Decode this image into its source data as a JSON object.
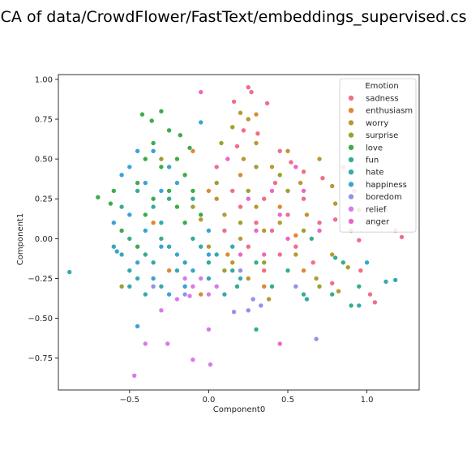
{
  "chart_data": {
    "type": "scatter",
    "title": "PCA of data/CrowdFlower/FastText/embeddings_supervised.csv",
    "xlabel": "Component0",
    "ylabel": "Component1",
    "xlim": [
      -0.95,
      1.33
    ],
    "ylim": [
      -0.95,
      1.03
    ],
    "xticks": [
      -0.5,
      0.0,
      0.5,
      1.0
    ],
    "xtick_labels": [
      "−0.5",
      "0.0",
      "0.5",
      "1.0"
    ],
    "yticks": [
      -0.75,
      -0.5,
      -0.25,
      0.0,
      0.25,
      0.5,
      0.75,
      1.0
    ],
    "ytick_labels": [
      "−0.75",
      "−0.50",
      "−0.25",
      "0.00",
      "0.25",
      "0.50",
      "0.75",
      "1.00"
    ],
    "grid": false,
    "legend": {
      "title": "Emotion",
      "placement": "top-right"
    },
    "series": [
      {
        "name": "sadness",
        "color": "#f06e8a",
        "points": [
          [
            0.25,
            0.95
          ],
          [
            0.27,
            0.92
          ],
          [
            0.37,
            0.85
          ],
          [
            0.16,
            0.86
          ],
          [
            0.22,
            0.68
          ],
          [
            0.31,
            0.66
          ],
          [
            0.45,
            0.55
          ],
          [
            0.52,
            0.48
          ],
          [
            0.6,
            0.42
          ],
          [
            0.72,
            0.38
          ],
          [
            0.85,
            0.45
          ],
          [
            0.92,
            0.3
          ],
          [
            1.03,
            0.34
          ],
          [
            1.12,
            0.18
          ],
          [
            1.18,
            0.05
          ],
          [
            1.22,
            0.01
          ],
          [
            0.8,
            0.12
          ],
          [
            0.95,
            -0.01
          ],
          [
            1.05,
            -0.4
          ],
          [
            1.02,
            -0.35
          ],
          [
            0.96,
            -0.2
          ],
          [
            0.2,
            0.2
          ],
          [
            0.3,
            0.1
          ],
          [
            0.35,
            0.25
          ],
          [
            0.4,
            0.05
          ],
          [
            0.25,
            -0.05
          ],
          [
            0.15,
            0.3
          ],
          [
            0.45,
            -0.1
          ],
          [
            0.5,
            0.15
          ],
          [
            0.55,
            -0.05
          ],
          [
            0.1,
            0.05
          ],
          [
            0.6,
            0.25
          ],
          [
            0.7,
            0.1
          ],
          [
            0.35,
            -0.2
          ],
          [
            0.05,
            0.45
          ],
          [
            0.18,
            0.58
          ],
          [
            0.42,
            0.35
          ],
          [
            0.66,
            -0.15
          ],
          [
            0.78,
            -0.28
          ]
        ]
      },
      {
        "name": "enthusiasm",
        "color": "#db8a37",
        "points": [
          [
            0.3,
            0.78
          ],
          [
            -0.1,
            0.55
          ],
          [
            0.0,
            0.3
          ],
          [
            0.12,
            -0.1
          ],
          [
            -0.25,
            -0.2
          ],
          [
            0.35,
            -0.3
          ],
          [
            0.55,
            0.02
          ],
          [
            -0.05,
            -0.35
          ],
          [
            0.2,
            0.4
          ],
          [
            0.45,
            0.2
          ],
          [
            -0.35,
            0.1
          ],
          [
            0.6,
            -0.2
          ]
        ]
      },
      {
        "name": "worry",
        "color": "#b69a31",
        "points": [
          [
            0.2,
            0.79
          ],
          [
            0.25,
            0.75
          ],
          [
            0.3,
            0.6
          ],
          [
            0.22,
            0.5
          ],
          [
            0.4,
            0.45
          ],
          [
            0.5,
            0.55
          ],
          [
            0.58,
            0.35
          ],
          [
            0.7,
            0.5
          ],
          [
            0.78,
            0.33
          ],
          [
            0.8,
            0.22
          ],
          [
            0.9,
            0.05
          ],
          [
            0.95,
            0.18
          ],
          [
            0.82,
            -0.33
          ],
          [
            0.78,
            -0.1
          ],
          [
            0.88,
            -0.18
          ],
          [
            0.1,
            0.15
          ],
          [
            0.2,
            0.0
          ],
          [
            0.3,
            0.2
          ],
          [
            0.15,
            -0.15
          ],
          [
            0.35,
            0.05
          ],
          [
            0.05,
            0.25
          ],
          [
            0.25,
            -0.25
          ],
          [
            0.45,
            0.1
          ],
          [
            0.55,
            -0.1
          ],
          [
            0.62,
            0.15
          ],
          [
            0.0,
            -0.05
          ],
          [
            -0.05,
            0.12
          ],
          [
            0.68,
            -0.25
          ],
          [
            0.38,
            -0.38
          ]
        ]
      },
      {
        "name": "surprise",
        "color": "#98a231",
        "points": [
          [
            0.15,
            0.7
          ],
          [
            0.08,
            0.6
          ],
          [
            0.3,
            0.45
          ],
          [
            0.45,
            0.4
          ],
          [
            0.2,
            0.1
          ],
          [
            0.1,
            -0.2
          ],
          [
            0.35,
            -0.15
          ],
          [
            0.5,
            0.3
          ],
          [
            -0.1,
            0.2
          ],
          [
            0.6,
            0.05
          ],
          [
            -0.2,
            -0.1
          ],
          [
            0.05,
            0.35
          ],
          [
            -0.55,
            -0.3
          ],
          [
            -0.3,
            0.5
          ],
          [
            0.7,
            -0.3
          ],
          [
            0.25,
            0.3
          ]
        ]
      },
      {
        "name": "love",
        "color": "#3eab4b",
        "points": [
          [
            -0.42,
            0.78
          ],
          [
            -0.36,
            0.74
          ],
          [
            -0.3,
            0.8
          ],
          [
            -0.35,
            0.6
          ],
          [
            -0.25,
            0.68
          ],
          [
            -0.18,
            0.65
          ],
          [
            -0.12,
            0.57
          ],
          [
            -0.4,
            0.5
          ],
          [
            -0.5,
            0.45
          ],
          [
            -0.45,
            0.35
          ],
          [
            -0.3,
            0.45
          ],
          [
            -0.2,
            0.5
          ],
          [
            -0.15,
            0.4
          ],
          [
            -0.25,
            0.3
          ],
          [
            -0.35,
            0.25
          ],
          [
            -0.6,
            0.3
          ],
          [
            -0.7,
            0.26
          ],
          [
            -0.62,
            0.22
          ],
          [
            -0.4,
            0.15
          ],
          [
            -0.3,
            0.1
          ],
          [
            -0.2,
            0.2
          ],
          [
            -0.1,
            0.3
          ],
          [
            -0.05,
            0.15
          ],
          [
            -0.55,
            0.05
          ],
          [
            -0.45,
            -0.05
          ],
          [
            -0.15,
            0.1
          ]
        ]
      },
      {
        "name": "fun",
        "color": "#38ac8f",
        "points": [
          [
            -0.55,
            0.2
          ],
          [
            -0.5,
            0.0
          ],
          [
            -0.4,
            -0.1
          ],
          [
            -0.3,
            0.0
          ],
          [
            -0.2,
            -0.1
          ],
          [
            -0.1,
            0.0
          ],
          [
            0.0,
            -0.15
          ],
          [
            -0.35,
            0.2
          ],
          [
            -0.25,
            0.25
          ],
          [
            0.15,
            -0.2
          ],
          [
            0.3,
            -0.15
          ],
          [
            0.5,
            -0.2
          ],
          [
            0.6,
            -0.35
          ],
          [
            0.8,
            -0.12
          ],
          [
            0.85,
            -0.15
          ],
          [
            0.95,
            -0.3
          ],
          [
            0.78,
            -0.35
          ],
          [
            0.3,
            -0.57
          ],
          [
            0.18,
            -0.3
          ],
          [
            -0.1,
            0.25
          ],
          [
            -0.45,
            0.3
          ],
          [
            0.4,
            -0.3
          ],
          [
            0.65,
            0.0
          ],
          [
            0.9,
            -0.42
          ]
        ]
      },
      {
        "name": "hate",
        "color": "#36a9ae",
        "points": [
          [
            -0.88,
            -0.21
          ],
          [
            -0.6,
            -0.05
          ],
          [
            -0.55,
            -0.1
          ],
          [
            -0.5,
            -0.2
          ],
          [
            -0.45,
            -0.25
          ],
          [
            -0.4,
            -0.35
          ],
          [
            -0.3,
            -0.3
          ],
          [
            -0.2,
            -0.2
          ],
          [
            -0.1,
            -0.3
          ],
          [
            0.0,
            -0.25
          ],
          [
            0.1,
            -0.35
          ],
          [
            0.2,
            -0.25
          ],
          [
            -0.35,
            -0.15
          ],
          [
            -0.25,
            -0.05
          ],
          [
            -0.15,
            -0.15
          ],
          [
            -0.05,
            -0.05
          ],
          [
            0.05,
            -0.1
          ],
          [
            0.15,
            -0.05
          ],
          [
            1.18,
            -0.26
          ],
          [
            1.12,
            -0.27
          ],
          [
            0.95,
            -0.42
          ],
          [
            0.62,
            -0.38
          ],
          [
            -0.5,
            -0.3
          ],
          [
            -0.3,
            0.1
          ]
        ]
      },
      {
        "name": "happiness",
        "color": "#3aa3d5",
        "points": [
          [
            -0.45,
            -0.55
          ],
          [
            -0.5,
            0.45
          ],
          [
            -0.55,
            0.4
          ],
          [
            -0.45,
            0.55
          ],
          [
            -0.35,
            0.55
          ],
          [
            -0.25,
            0.45
          ],
          [
            -0.4,
            0.35
          ],
          [
            -0.3,
            0.3
          ],
          [
            -0.2,
            0.35
          ],
          [
            -0.5,
            0.15
          ],
          [
            -0.4,
            0.05
          ],
          [
            -0.3,
            -0.05
          ],
          [
            -0.2,
            -0.1
          ],
          [
            -0.1,
            -0.2
          ],
          [
            0.0,
            -0.1
          ],
          [
            -0.45,
            -0.15
          ],
          [
            -0.35,
            -0.25
          ],
          [
            -0.25,
            -0.35
          ],
          [
            -0.15,
            -0.3
          ],
          [
            -0.05,
            0.73
          ],
          [
            -0.58,
            -0.08
          ],
          [
            0.0,
            0.05
          ],
          [
            -0.6,
            0.1
          ],
          [
            0.55,
            -0.3
          ],
          [
            1.0,
            -0.15
          ]
        ]
      },
      {
        "name": "boredom",
        "color": "#8f93e9",
        "points": [
          [
            0.68,
            -0.63
          ],
          [
            0.16,
            -0.46
          ],
          [
            0.33,
            -0.42
          ],
          [
            0.28,
            -0.38
          ],
          [
            -0.15,
            -0.35
          ],
          [
            -0.35,
            -0.3
          ],
          [
            0.05,
            -0.3
          ],
          [
            0.2,
            -0.2
          ],
          [
            0.55,
            -0.3
          ],
          [
            0.25,
            -0.45
          ]
        ]
      },
      {
        "name": "relief",
        "color": "#d87ae9",
        "points": [
          [
            -0.47,
            -0.86
          ],
          [
            -0.4,
            -0.66
          ],
          [
            -0.26,
            -0.66
          ],
          [
            -0.1,
            -0.76
          ],
          [
            0.01,
            -0.79
          ],
          [
            0.0,
            -0.57
          ],
          [
            -0.2,
            -0.38
          ],
          [
            -0.1,
            -0.3
          ],
          [
            -0.05,
            -0.25
          ],
          [
            0.05,
            -0.3
          ],
          [
            -0.15,
            -0.25
          ],
          [
            -0.3,
            -0.45
          ],
          [
            -0.12,
            -0.36
          ],
          [
            0.0,
            -0.35
          ]
        ]
      },
      {
        "name": "anger",
        "color": "#ea67c5",
        "points": [
          [
            -0.05,
            0.92
          ],
          [
            0.45,
            -0.66
          ],
          [
            0.12,
            0.5
          ],
          [
            0.25,
            0.25
          ],
          [
            0.35,
            -0.1
          ],
          [
            0.4,
            0.3
          ],
          [
            0.5,
            0.0
          ],
          [
            0.6,
            0.3
          ],
          [
            0.2,
            -0.1
          ],
          [
            0.3,
            0.05
          ],
          [
            0.7,
            0.05
          ],
          [
            0.45,
            0.15
          ],
          [
            0.55,
            0.45
          ]
        ]
      }
    ]
  }
}
